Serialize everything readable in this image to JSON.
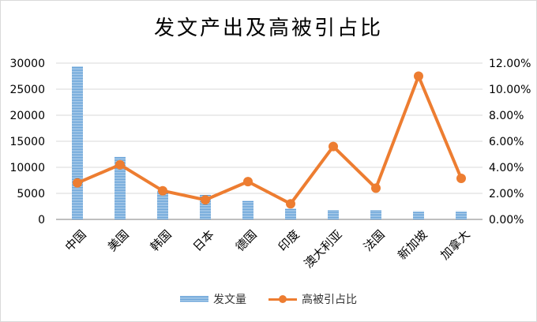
{
  "chart_data": {
    "type": "bar+line",
    "title": "发文产出及高被引占比",
    "categories": [
      "中国",
      "美国",
      "韩国",
      "日本",
      "德国",
      "印度",
      "澳大利亚",
      "法国",
      "新加坡",
      "加拿大"
    ],
    "series": [
      {
        "name": "发文量",
        "type": "bar",
        "axis": "left",
        "values": [
          29400,
          12000,
          5500,
          4700,
          3600,
          2100,
          1800,
          1800,
          1550,
          1550
        ]
      },
      {
        "name": "高被引占比",
        "type": "line",
        "axis": "right",
        "values": [
          2.8,
          4.2,
          2.2,
          1.5,
          2.9,
          1.2,
          5.6,
          2.4,
          11.0,
          3.15
        ]
      }
    ],
    "ylim": [
      0,
      30000
    ],
    "yticks": [
      "0",
      "5000",
      "10000",
      "15000",
      "20000",
      "25000",
      "30000"
    ],
    "y2lim": [
      0,
      12
    ],
    "y2ticks": [
      "0.00%",
      "2.00%",
      "4.00%",
      "6.00%",
      "8.00%",
      "10.00%",
      "12.00%"
    ],
    "grid": true,
    "legend": "bottom",
    "colors": {
      "bar": "#5b9bd5",
      "line": "#ed7d31"
    }
  }
}
